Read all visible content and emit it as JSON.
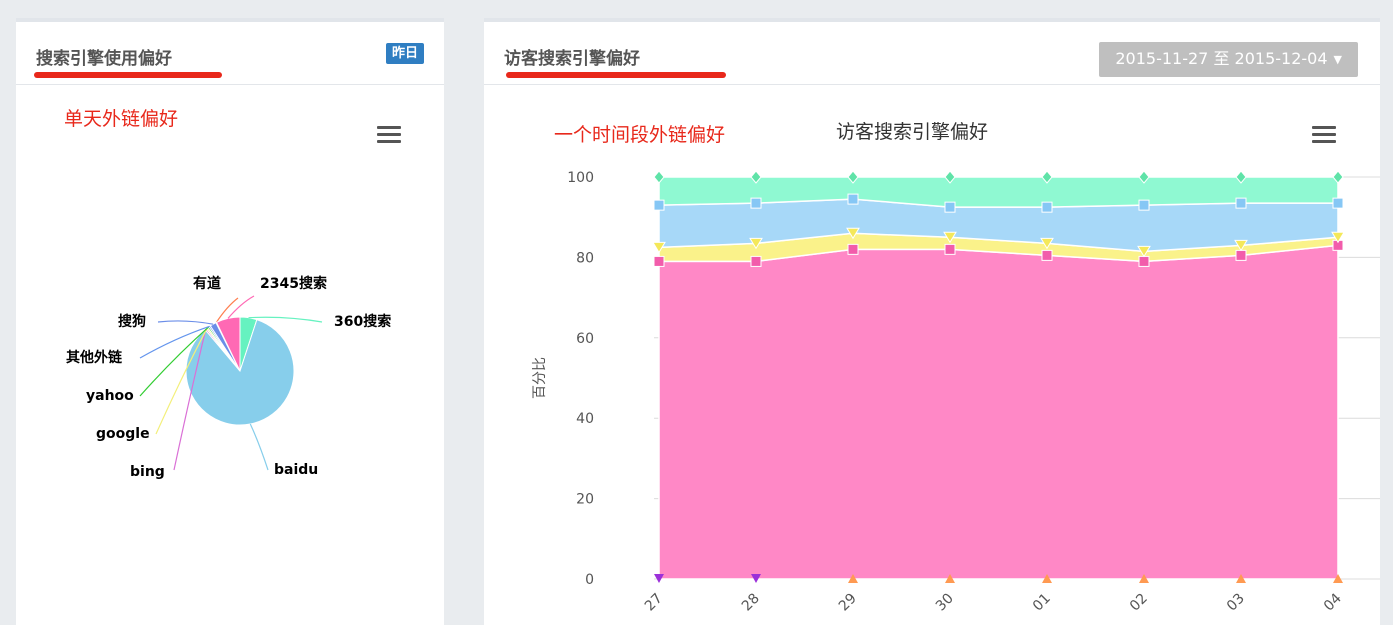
{
  "left_panel": {
    "title": "搜索引擎使用偏好",
    "badge": "昨日",
    "annotation": "单天外链偏好",
    "menu_icon": "hamburger-menu-icon"
  },
  "right_panel": {
    "title": "访客搜索引擎偏好",
    "date_range": "2015-11-27 至 2015-12-04",
    "annotation": "一个时间段外链偏好",
    "menu_icon": "hamburger-menu-icon"
  },
  "colors": {
    "annotation_red": "#e8281b",
    "badge_blue": "#2f7ec2",
    "date_button_gray": "#bfbfbf"
  },
  "chart_data": [
    {
      "type": "pie",
      "title": "",
      "slices": [
        {
          "label": "baidu",
          "value": 88.0,
          "color": "#87ceeb"
        },
        {
          "label": "bing",
          "value": 0.5,
          "color": "#da70d6"
        },
        {
          "label": "google",
          "value": 0.5,
          "color": "#f3ef7a"
        },
        {
          "label": "yahoo",
          "value": 0.5,
          "color": "#32cd32"
        },
        {
          "label": "其他外链",
          "value": 0.5,
          "color": "#6495ed"
        },
        {
          "label": "搜狗",
          "value": 2.0,
          "color": "#6b8ee8"
        },
        {
          "label": "有道",
          "value": 0.2,
          "color": "#ff7f50"
        },
        {
          "label": "2345搜索",
          "value": 7.5,
          "color": "#ff69b4"
        },
        {
          "label": "360搜索",
          "value": 5.3,
          "color": "#66f2c0"
        }
      ]
    },
    {
      "type": "area",
      "stacked": true,
      "title": "访客搜索引擎偏好",
      "ylabel": "百分比",
      "ylim": [
        0,
        100
      ],
      "yticks": [
        0,
        20,
        40,
        60,
        80,
        100
      ],
      "categories": [
        "27",
        "28",
        "29",
        "30",
        "01",
        "02",
        "03",
        "04"
      ],
      "series": [
        {
          "color": "#ff88c6",
          "marker": "square",
          "values": [
            79,
            79,
            82,
            82,
            80.5,
            79,
            80.5,
            83
          ]
        },
        {
          "color": "#faf28a",
          "marker": "triangle-down",
          "values": [
            3.5,
            4.5,
            4,
            3,
            3,
            2.5,
            2.5,
            2
          ]
        },
        {
          "color": "#a7d8f8",
          "marker": "square",
          "values": [
            10.5,
            10,
            8.5,
            7.5,
            9,
            11.5,
            10.5,
            8.5
          ]
        },
        {
          "color": "#8ff9d2",
          "marker": "diamond",
          "values": [
            7,
            6.5,
            5.5,
            7.5,
            7.5,
            7,
            6.5,
            6.5
          ]
        }
      ],
      "bottom_markers": [
        {
          "color": "#9b30d9",
          "shape": "triangle-down",
          "count": 2
        },
        {
          "color": "#ff9a52",
          "shape": "triangle-up",
          "count": 6
        }
      ]
    }
  ]
}
